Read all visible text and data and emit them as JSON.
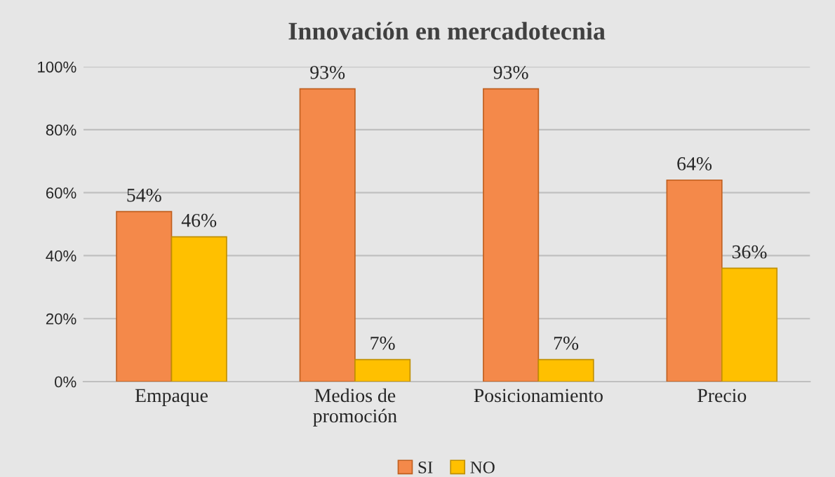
{
  "chart_data": {
    "type": "bar",
    "title": "Innovación en mercadotecnia",
    "categories": [
      "Empaque",
      "Medios de\npromoción",
      "Posicionamiento",
      "Precio"
    ],
    "series": [
      {
        "name": "SI",
        "color": "#f4894a",
        "values": [
          54,
          93,
          93,
          64
        ],
        "value_labels": [
          "54%",
          "93%",
          "93%",
          "64%"
        ]
      },
      {
        "name": "NO",
        "color": "#ffc000",
        "values": [
          46,
          7,
          7,
          36
        ],
        "value_labels": [
          "46%",
          "7%",
          "7%",
          "36%"
        ]
      }
    ],
    "ylim": [
      0,
      100
    ],
    "yticks": [
      {
        "value": 0,
        "label": "0%"
      },
      {
        "value": 20,
        "label": "20%"
      },
      {
        "value": 40,
        "label": "40%"
      },
      {
        "value": 60,
        "label": "60%"
      },
      {
        "value": 80,
        "label": "80%"
      },
      {
        "value": 100,
        "label": "100%"
      }
    ],
    "grid": "y",
    "legend": "bottom"
  }
}
